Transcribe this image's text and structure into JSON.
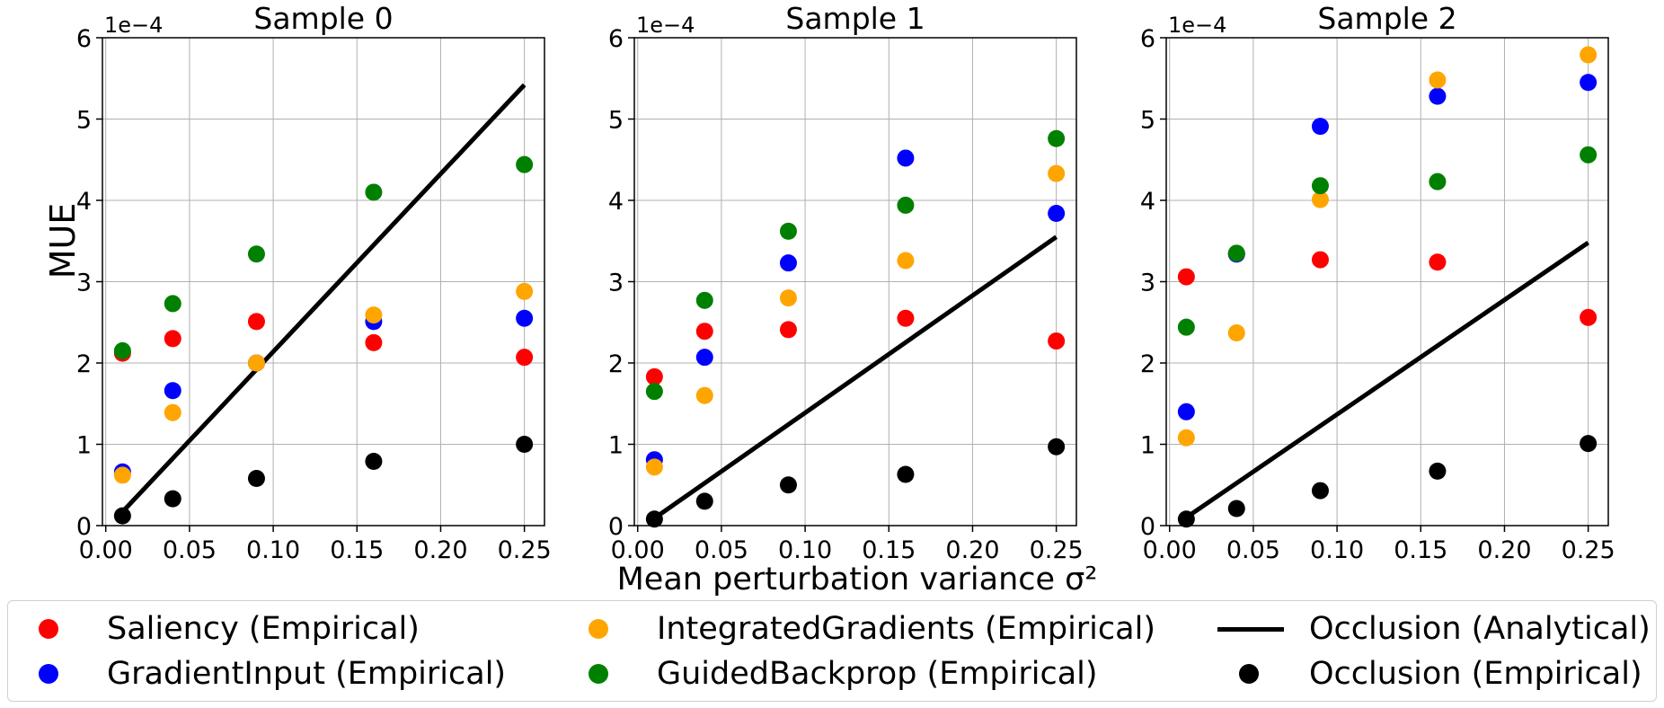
{
  "figure": {
    "xlabel": "Mean perturbation variance σ²",
    "ylabel": "MUE",
    "y_scale_label": "1e−4",
    "colors": {
      "saliency": "#ff0000",
      "gradientinput": "#0000ff",
      "integratedgradients": "#ffa500",
      "guidedbackprop": "#008000",
      "occlusion_empirical": "#000000",
      "occlusion_analytical": "#000000"
    },
    "x_ticks": [
      "0.00",
      "0.05",
      "0.10",
      "0.15",
      "0.20",
      "0.25"
    ],
    "y_ticks": [
      "0",
      "1",
      "2",
      "3",
      "4",
      "5",
      "6"
    ]
  },
  "legend": {
    "saliency": "Saliency (Empirical)",
    "gradientinput": "GradientInput (Empirical)",
    "integratedgradients": "IntegratedGradients (Empirical)",
    "guidedbackprop": "GuidedBackprop (Empirical)",
    "occlusion_analytical": "Occlusion (Analytical)",
    "occlusion_empirical": "Occlusion (Empirical)"
  },
  "chart_data": [
    {
      "type": "scatter",
      "title": "Sample 0",
      "xlabel": "",
      "ylabel": "MUE",
      "xlim": [
        -0.002,
        0.262
      ],
      "ylim": [
        0,
        6
      ],
      "y_multiplier": "1e-4",
      "grid": true,
      "x": [
        0.01,
        0.04,
        0.09,
        0.16,
        0.25
      ],
      "series": [
        {
          "name": "Saliency (Empirical)",
          "key": "saliency",
          "values": [
            2.12,
            2.3,
            2.51,
            2.25,
            2.07
          ]
        },
        {
          "name": "GradientInput (Empirical)",
          "key": "gradientinput",
          "values": [
            0.66,
            1.66,
            2.0,
            2.51,
            2.55
          ]
        },
        {
          "name": "IntegratedGradients (Empirical)",
          "key": "integratedgradients",
          "values": [
            0.62,
            1.39,
            2.0,
            2.59,
            2.88
          ]
        },
        {
          "name": "GuidedBackprop (Empirical)",
          "key": "guidedbackprop",
          "values": [
            2.15,
            2.73,
            3.34,
            4.1,
            4.44
          ]
        },
        {
          "name": "Occlusion (Empirical)",
          "key": "occlusion_empirical",
          "values": [
            0.12,
            0.33,
            0.58,
            0.79,
            1.0
          ]
        }
      ],
      "line": {
        "name": "Occlusion (Analytical)",
        "x": [
          0.01,
          0.25
        ],
        "y": [
          0.17,
          5.42
        ]
      }
    },
    {
      "type": "scatter",
      "title": "Sample 1",
      "xlabel": "",
      "ylabel": "",
      "xlim": [
        -0.002,
        0.262
      ],
      "ylim": [
        0,
        6
      ],
      "y_multiplier": "1e-4",
      "grid": true,
      "x": [
        0.01,
        0.04,
        0.09,
        0.16,
        0.25
      ],
      "series": [
        {
          "name": "Saliency (Empirical)",
          "key": "saliency",
          "values": [
            1.83,
            2.39,
            2.41,
            2.55,
            2.27
          ]
        },
        {
          "name": "GradientInput (Empirical)",
          "key": "gradientinput",
          "values": [
            0.81,
            2.07,
            3.23,
            4.52,
            3.84
          ]
        },
        {
          "name": "IntegratedGradients (Empirical)",
          "key": "integratedgradients",
          "values": [
            0.72,
            1.6,
            2.8,
            3.26,
            4.33
          ]
        },
        {
          "name": "GuidedBackprop (Empirical)",
          "key": "guidedbackprop",
          "values": [
            1.65,
            2.77,
            3.62,
            3.94,
            4.76
          ]
        },
        {
          "name": "Occlusion (Empirical)",
          "key": "occlusion_empirical",
          "values": [
            0.08,
            0.3,
            0.5,
            0.63,
            0.97
          ]
        }
      ],
      "line": {
        "name": "Occlusion (Analytical)",
        "x": [
          0.01,
          0.25
        ],
        "y": [
          0.09,
          3.55
        ]
      }
    },
    {
      "type": "scatter",
      "title": "Sample 2",
      "xlabel": "",
      "ylabel": "",
      "xlim": [
        -0.002,
        0.262
      ],
      "ylim": [
        0,
        6
      ],
      "y_multiplier": "1e-4",
      "grid": true,
      "x": [
        0.01,
        0.04,
        0.09,
        0.16,
        0.25
      ],
      "series": [
        {
          "name": "Saliency (Empirical)",
          "key": "saliency",
          "values": [
            3.06,
            3.34,
            3.27,
            3.24,
            2.56
          ]
        },
        {
          "name": "GradientInput (Empirical)",
          "key": "gradientinput",
          "values": [
            1.4,
            3.34,
            4.91,
            5.28,
            5.45
          ]
        },
        {
          "name": "IntegratedGradients (Empirical)",
          "key": "integratedgradients",
          "values": [
            1.08,
            2.37,
            4.01,
            5.48,
            5.79
          ]
        },
        {
          "name": "GuidedBackprop (Empirical)",
          "key": "guidedbackprop",
          "values": [
            2.44,
            3.35,
            4.18,
            4.23,
            4.56
          ]
        },
        {
          "name": "Occlusion (Empirical)",
          "key": "occlusion_empirical",
          "values": [
            0.08,
            0.21,
            0.43,
            0.67,
            1.01
          ]
        }
      ],
      "line": {
        "name": "Occlusion (Analytical)",
        "x": [
          0.01,
          0.25
        ],
        "y": [
          0.1,
          3.48
        ]
      }
    }
  ]
}
